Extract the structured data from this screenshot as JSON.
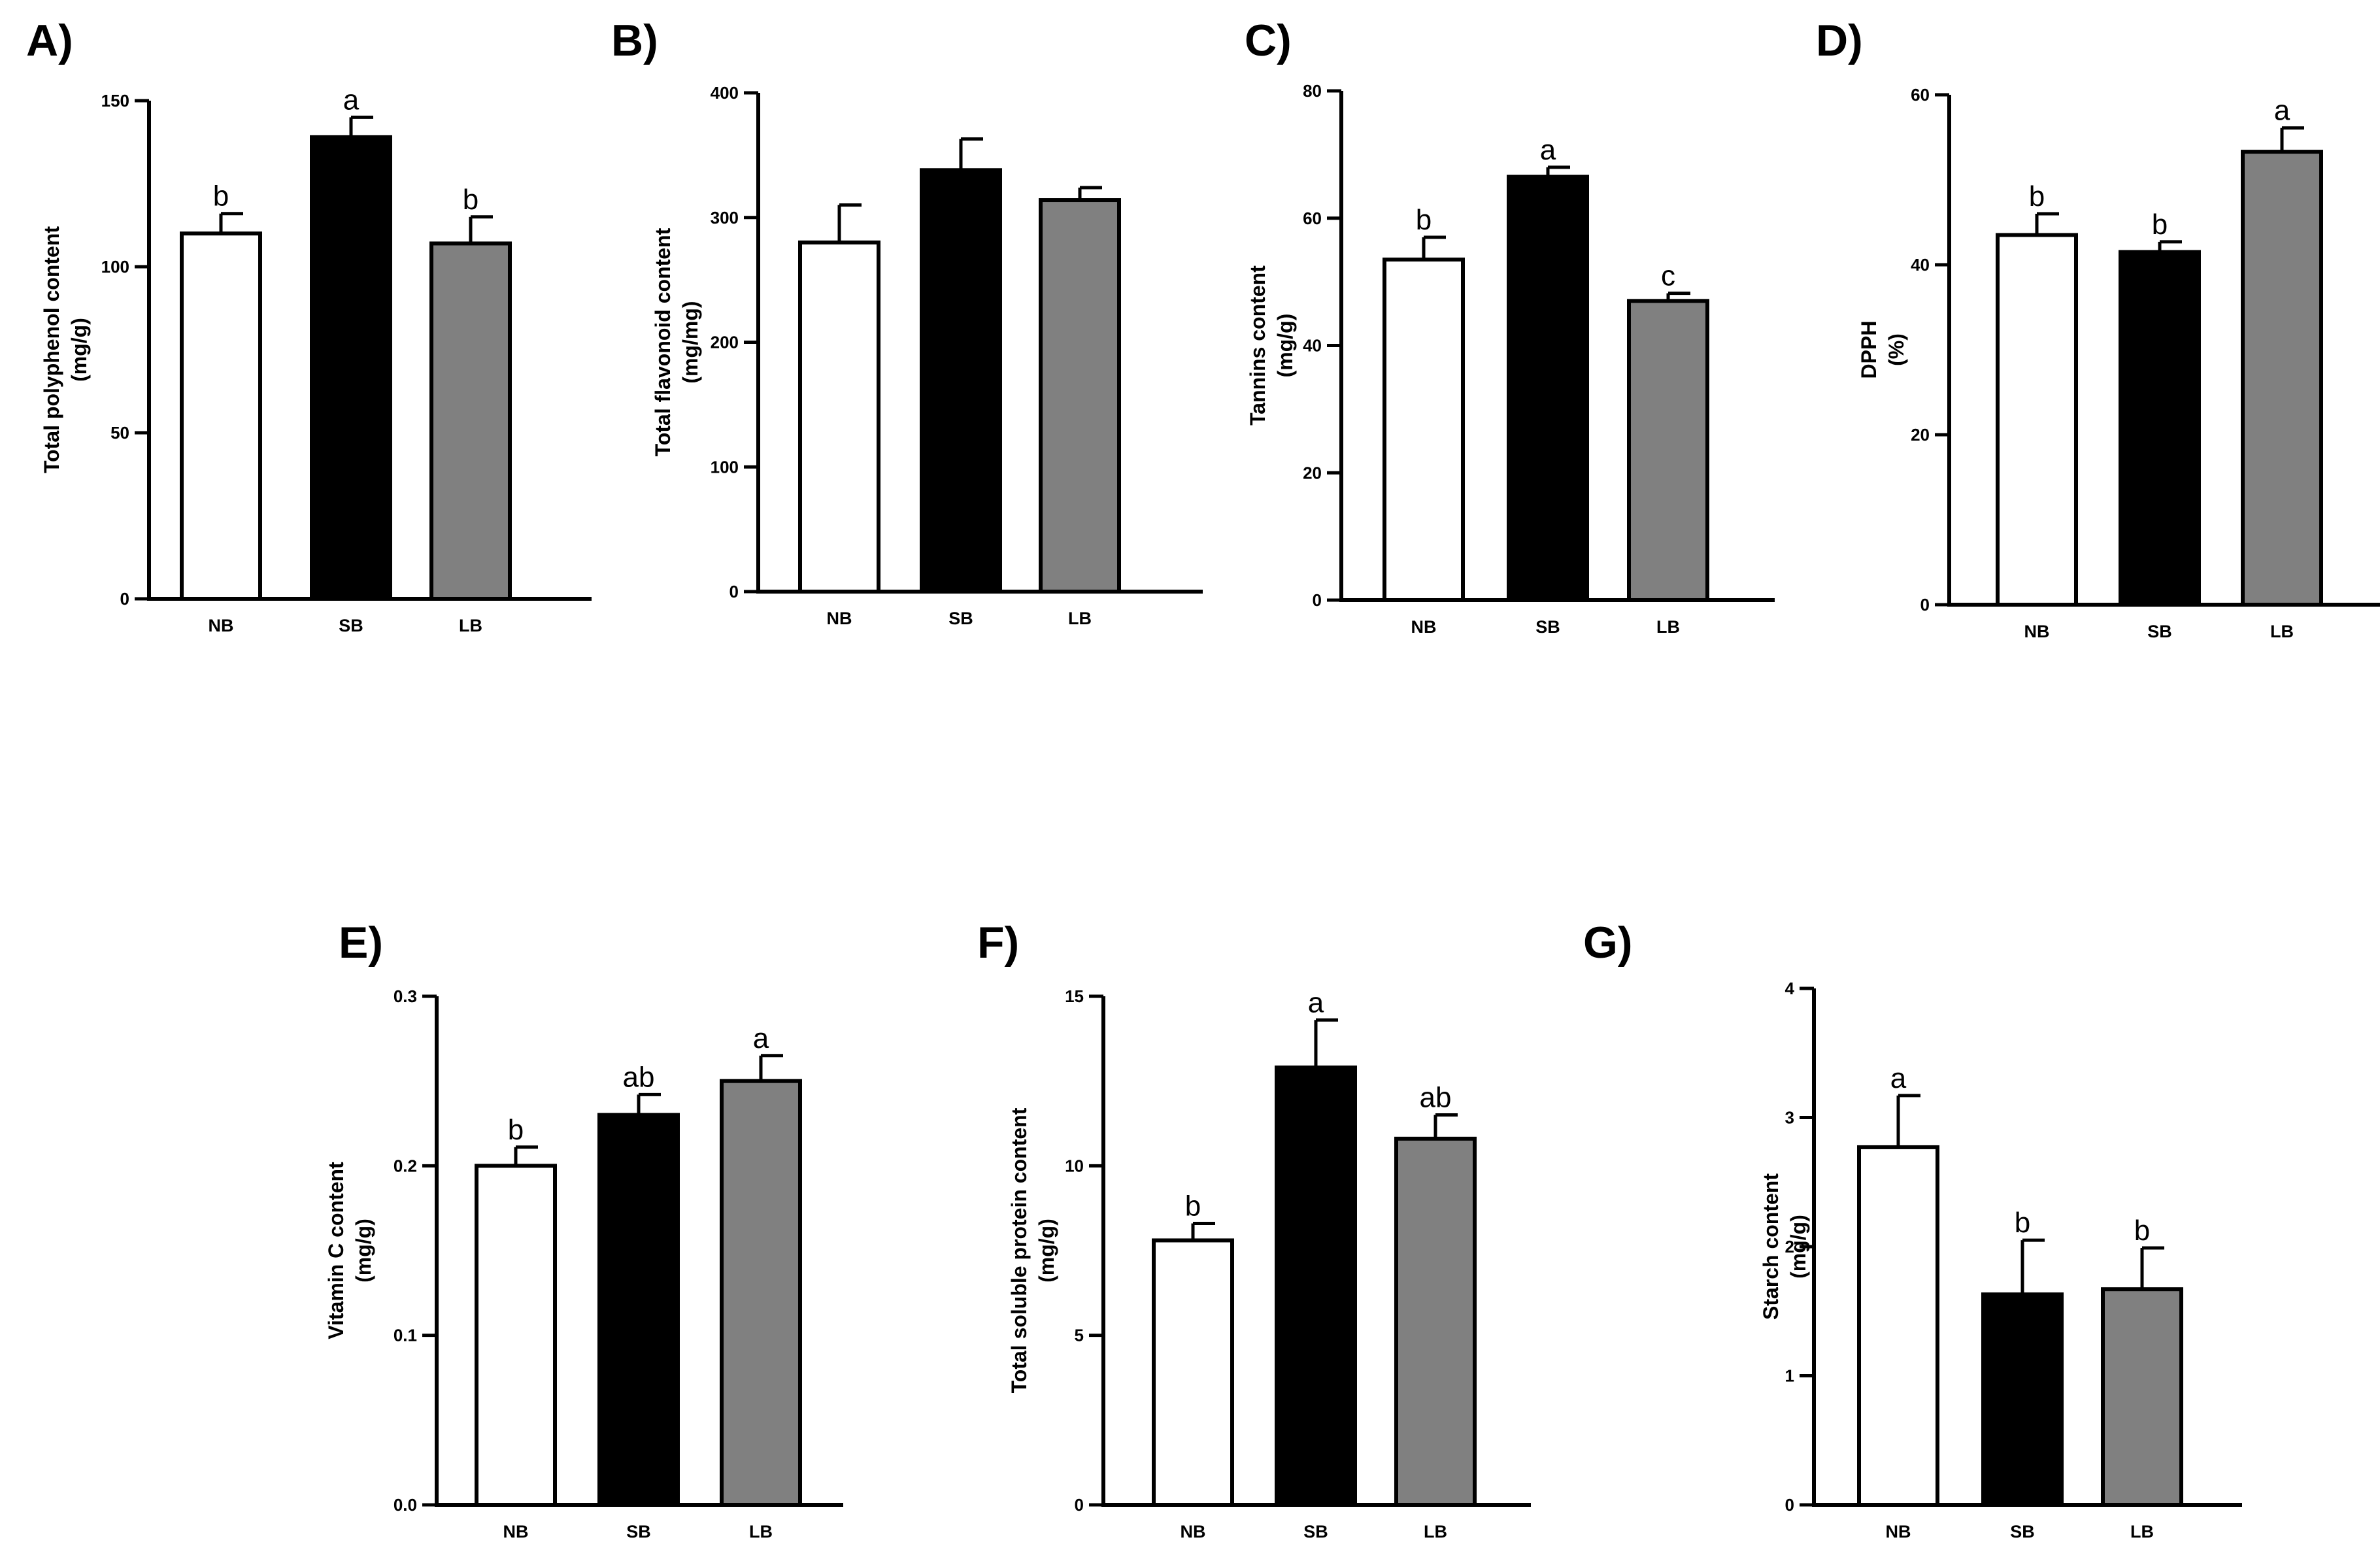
{
  "colors": {
    "NB": "#ffffff",
    "SB": "#000000",
    "LB": "#808080",
    "stroke": "#000000"
  },
  "chart_data": [
    {
      "id": "A",
      "panel_label": "A)",
      "type": "bar",
      "ylabel_lines": [
        "Total polyphenol content",
        "(mg/g)"
      ],
      "categories": [
        "NB",
        "SB",
        "LB"
      ],
      "values": [
        110,
        139,
        107
      ],
      "errors": [
        6,
        6,
        8
      ],
      "significance": [
        "b",
        "a",
        "b"
      ],
      "ylim": [
        0,
        150
      ],
      "yticks": [
        0,
        50,
        100,
        150
      ]
    },
    {
      "id": "B",
      "panel_label": "B)",
      "type": "bar",
      "ylabel_lines": [
        "Total flavonoid content",
        "(mg/mg)"
      ],
      "categories": [
        "NB",
        "SB",
        "LB"
      ],
      "values": [
        280,
        338,
        314
      ],
      "errors": [
        30,
        25,
        10
      ],
      "significance": [
        "",
        "",
        ""
      ],
      "ylim": [
        0,
        400
      ],
      "yticks": [
        0,
        100,
        200,
        300,
        400
      ]
    },
    {
      "id": "C",
      "panel_label": "C)",
      "type": "bar",
      "ylabel_lines": [
        "Tannins content",
        "(mg/g)"
      ],
      "categories": [
        "NB",
        "SB",
        "LB"
      ],
      "values": [
        53.5,
        66.5,
        47
      ],
      "errors": [
        3.5,
        1.5,
        1.2
      ],
      "significance": [
        "b",
        "a",
        "c"
      ],
      "ylim": [
        0,
        80
      ],
      "yticks": [
        0,
        20,
        40,
        60,
        80
      ]
    },
    {
      "id": "D",
      "panel_label": "D)",
      "type": "bar",
      "ylabel_lines": [
        "DPPH",
        "(%)"
      ],
      "categories": [
        "NB",
        "SB",
        "LB"
      ],
      "values": [
        43.5,
        41.5,
        53.3
      ],
      "errors": [
        2.5,
        1.2,
        2.8
      ],
      "significance": [
        "b",
        "b",
        "a"
      ],
      "ylim": [
        0,
        60
      ],
      "yticks": [
        0,
        20,
        40,
        60
      ]
    },
    {
      "id": "E",
      "panel_label": "E)",
      "type": "bar",
      "ylabel_lines": [
        "Vitamin C content",
        "(mg/g)"
      ],
      "categories": [
        "NB",
        "SB",
        "LB"
      ],
      "values": [
        0.2,
        0.23,
        0.25
      ],
      "errors": [
        0.011,
        0.012,
        0.015
      ],
      "significance": [
        "b",
        "ab",
        "a"
      ],
      "ylim": [
        0,
        0.3
      ],
      "yticks": [
        "0.0",
        "0.1",
        "0.2",
        "0.3"
      ]
    },
    {
      "id": "F",
      "panel_label": "F)",
      "type": "bar",
      "ylabel_lines": [
        "Total soluble protein  content",
        "(mg/g)"
      ],
      "categories": [
        "NB",
        "SB",
        "LB"
      ],
      "values": [
        7.8,
        12.9,
        10.8
      ],
      "errors": [
        0.5,
        1.4,
        0.7
      ],
      "significance": [
        "b",
        "a",
        "ab"
      ],
      "ylim": [
        0,
        15
      ],
      "yticks": [
        0,
        5,
        10,
        15
      ]
    },
    {
      "id": "G",
      "panel_label": "G)",
      "type": "bar",
      "ylabel_lines": [
        "Starch content",
        "(mg/g)"
      ],
      "categories": [
        "NB",
        "SB",
        "LB"
      ],
      "values": [
        2.77,
        1.63,
        1.67
      ],
      "errors": [
        0.4,
        0.42,
        0.32
      ],
      "significance": [
        "a",
        "b",
        "b"
      ],
      "ylim": [
        0,
        4
      ],
      "yticks": [
        0,
        1,
        2,
        3,
        4
      ]
    }
  ]
}
